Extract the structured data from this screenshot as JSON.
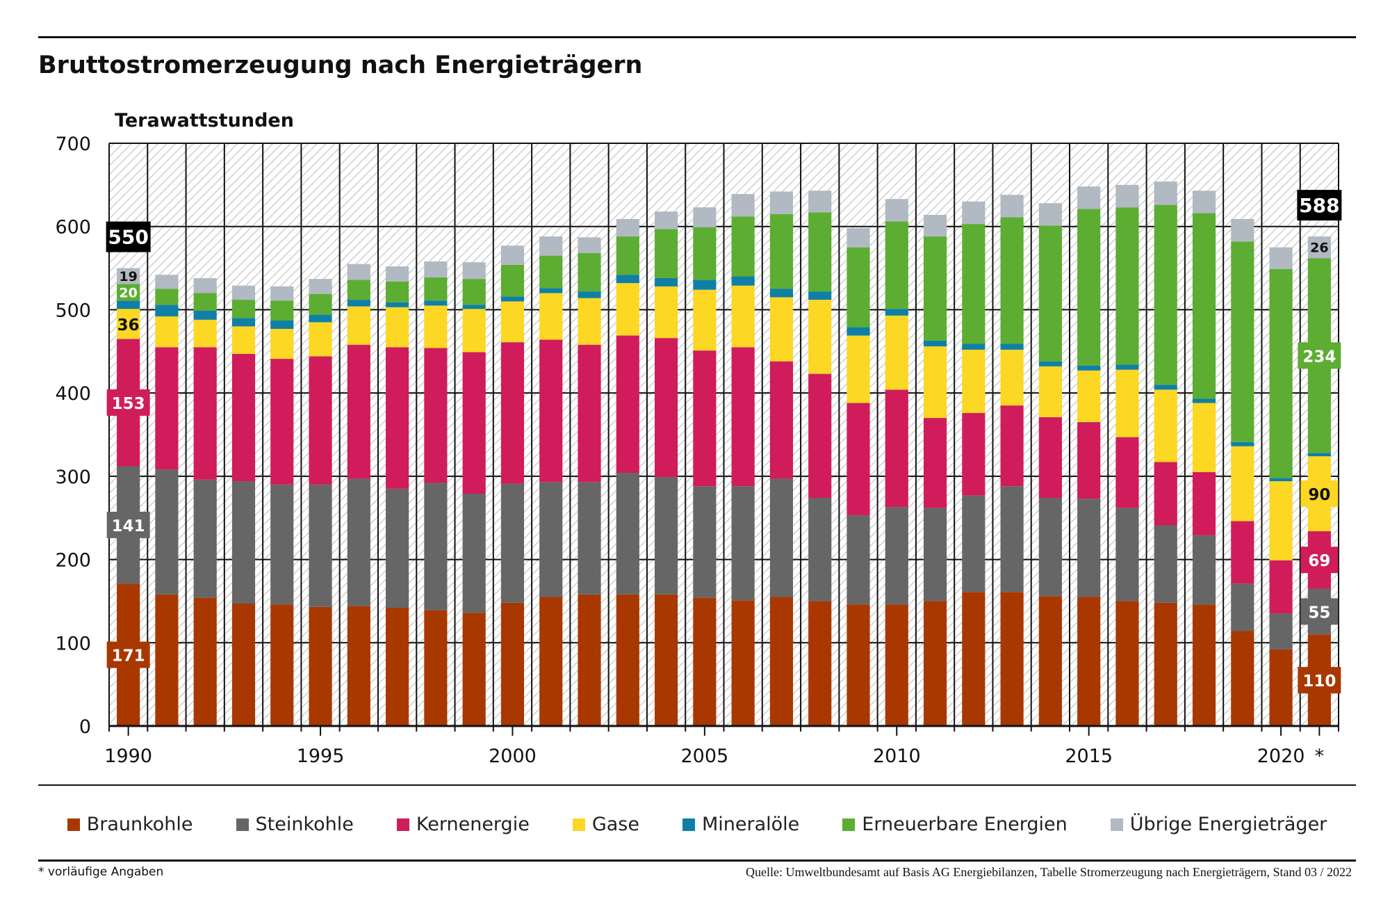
{
  "title": "Bruttostromerzeugung nach Energieträgern",
  "footnote": "* vorläufige Angaben",
  "source": "Quelle: Umweltbundesamt auf Basis AG Energiebilanzen, Tabelle Stromerzeugung nach Energieträgern, Stand 03 / 2022",
  "chart_data": {
    "type": "bar",
    "stacked": true,
    "title": "Bruttostromerzeugung nach Energieträgern",
    "ylabel": "Terawattstunden",
    "ylim": [
      0,
      700
    ],
    "yticks": [
      0,
      100,
      200,
      300,
      400,
      500,
      600,
      700
    ],
    "grid": true,
    "legend_position": "bottom",
    "categories": [
      1990,
      1991,
      1992,
      1993,
      1994,
      1995,
      1996,
      1997,
      1998,
      1999,
      2000,
      2001,
      2002,
      2003,
      2004,
      2005,
      2006,
      2007,
      2008,
      2009,
      2010,
      2011,
      2012,
      2013,
      2014,
      2015,
      2016,
      2017,
      2018,
      2019,
      2020,
      2021
    ],
    "xtick_labels": {
      "1990": "1990",
      "1995": "1995",
      "2000": "2000",
      "2005": "2005",
      "2010": "2010",
      "2015": "2015",
      "2020": "2020",
      "2021": "*"
    },
    "series": [
      {
        "name": "Braunkohle",
        "color": "#a83800",
        "values": [
          171,
          158,
          154,
          147,
          146,
          143,
          144,
          142,
          139,
          136,
          148,
          155,
          158,
          158,
          158,
          154,
          151,
          155,
          150,
          146,
          146,
          150,
          161,
          161,
          156,
          155,
          150,
          148,
          146,
          114,
          92,
          110
        ]
      },
      {
        "name": "Steinkohle",
        "color": "#666666",
        "values": [
          141,
          150,
          142,
          147,
          144,
          147,
          153,
          143,
          153,
          143,
          143,
          138,
          135,
          146,
          141,
          134,
          137,
          142,
          124,
          107,
          117,
          112,
          116,
          127,
          118,
          118,
          112,
          93,
          83,
          57,
          43,
          55
        ]
      },
      {
        "name": "Kernenergie",
        "color": "#d01c5b",
        "values": [
          153,
          147,
          159,
          153,
          151,
          154,
          161,
          170,
          162,
          170,
          170,
          171,
          165,
          165,
          167,
          163,
          167,
          141,
          149,
          135,
          141,
          108,
          99,
          97,
          97,
          92,
          85,
          76,
          76,
          75,
          64,
          69
        ]
      },
      {
        "name": "Gase",
        "color": "#fcd723",
        "values": [
          36,
          37,
          33,
          33,
          36,
          41,
          46,
          48,
          51,
          52,
          49,
          56,
          56,
          63,
          62,
          73,
          74,
          77,
          89,
          81,
          89,
          86,
          76,
          67,
          61,
          62,
          81,
          87,
          83,
          90,
          95,
          90
        ]
      },
      {
        "name": "Mineralöle",
        "color": "#0f7fa6",
        "values": [
          10,
          14,
          11,
          10,
          10,
          9,
          8,
          6,
          6,
          5,
          6,
          6,
          8,
          10,
          10,
          12,
          11,
          10,
          10,
          10,
          8,
          7,
          7,
          7,
          6,
          6,
          6,
          6,
          5,
          5,
          4,
          4
        ]
      },
      {
        "name": "Erneuerbare Energien",
        "color": "#5cad32",
        "values": [
          20,
          19,
          21,
          22,
          24,
          25,
          24,
          25,
          28,
          31,
          38,
          39,
          46,
          46,
          59,
          63,
          72,
          90,
          95,
          96,
          105,
          125,
          144,
          152,
          163,
          188,
          189,
          216,
          223,
          241,
          251,
          234
        ]
      },
      {
        "name": "Übrige Energieträger",
        "color": "#b1b9c3",
        "values": [
          19,
          17,
          18,
          17,
          17,
          18,
          19,
          18,
          19,
          20,
          23,
          23,
          19,
          21,
          21,
          24,
          27,
          27,
          26,
          23,
          27,
          26,
          27,
          27,
          27,
          27,
          27,
          28,
          27,
          27,
          26,
          26
        ]
      }
    ],
    "data_labels": {
      "1990": {
        "total": "550",
        "Braunkohle": "171",
        "Steinkohle": "141",
        "Kernenergie": "153",
        "Gase": "36",
        "Erneuerbare Energien": "20",
        "Übrige Energieträger": "19"
      },
      "2021": {
        "total": "588",
        "Braunkohle": "110",
        "Steinkohle": "55",
        "Kernenergie": "69",
        "Gase": "90",
        "Erneuerbare Energien": "234",
        "Übrige Energieträger": "26"
      }
    }
  }
}
